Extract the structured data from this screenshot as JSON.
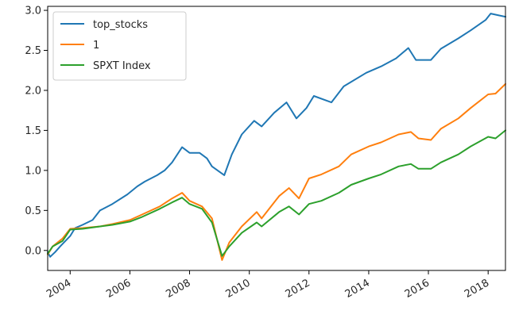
{
  "chart_data": {
    "type": "line",
    "x_axis": {
      "kind": "date",
      "range": [
        "2003-04-01",
        "2018-08-01"
      ],
      "tick_labels": [
        "2004",
        "2006",
        "2008",
        "2010",
        "2012",
        "2014",
        "2016",
        "2018"
      ],
      "tick_dates": [
        "2004-01-01",
        "2006-01-01",
        "2008-01-01",
        "2010-01-01",
        "2012-01-01",
        "2014-01-01",
        "2016-01-01",
        "2018-01-01"
      ],
      "tick_label_rotation": "diagonal"
    },
    "y_axis": {
      "range": [
        -0.25,
        3.05
      ],
      "ticks": [
        0.0,
        0.5,
        1.0,
        1.5,
        2.0,
        2.5,
        3.0
      ],
      "tick_labels": [
        "0.0",
        "0.5",
        "1.0",
        "1.5",
        "2.0",
        "2.5",
        "3.0"
      ]
    },
    "grid": false,
    "legend": {
      "placement": "top-left"
    },
    "series": [
      {
        "name": "top_stocks",
        "color": "#1f77b4",
        "points": [
          [
            "2003-04-01",
            -0.02
          ],
          [
            "2003-05-01",
            -0.08
          ],
          [
            "2003-07-01",
            -0.02
          ],
          [
            "2003-09-01",
            0.05
          ],
          [
            "2004-01-01",
            0.18
          ],
          [
            "2004-03-01",
            0.28
          ],
          [
            "2004-06-01",
            0.32
          ],
          [
            "2004-10-01",
            0.38
          ],
          [
            "2005-01-01",
            0.5
          ],
          [
            "2005-06-01",
            0.58
          ],
          [
            "2005-12-01",
            0.7
          ],
          [
            "2006-04-01",
            0.8
          ],
          [
            "2006-07-01",
            0.86
          ],
          [
            "2006-12-01",
            0.94
          ],
          [
            "2007-03-01",
            1.0
          ],
          [
            "2007-06-01",
            1.1
          ],
          [
            "2007-10-01",
            1.29
          ],
          [
            "2008-01-01",
            1.22
          ],
          [
            "2008-05-01",
            1.22
          ],
          [
            "2008-08-01",
            1.15
          ],
          [
            "2008-10-01",
            1.05
          ],
          [
            "2009-03-01",
            0.94
          ],
          [
            "2009-06-01",
            1.2
          ],
          [
            "2009-10-01",
            1.45
          ],
          [
            "2010-03-01",
            1.62
          ],
          [
            "2010-06-01",
            1.55
          ],
          [
            "2010-11-01",
            1.72
          ],
          [
            "2011-04-01",
            1.85
          ],
          [
            "2011-08-01",
            1.65
          ],
          [
            "2011-12-01",
            1.78
          ],
          [
            "2012-03-01",
            1.93
          ],
          [
            "2012-10-01",
            1.85
          ],
          [
            "2013-03-01",
            2.05
          ],
          [
            "2013-12-01",
            2.22
          ],
          [
            "2014-06-01",
            2.3
          ],
          [
            "2014-12-01",
            2.4
          ],
          [
            "2015-05-01",
            2.53
          ],
          [
            "2015-08-01",
            2.38
          ],
          [
            "2016-02-01",
            2.38
          ],
          [
            "2016-06-01",
            2.52
          ],
          [
            "2017-01-01",
            2.65
          ],
          [
            "2017-06-01",
            2.75
          ],
          [
            "2017-12-01",
            2.88
          ],
          [
            "2018-02-01",
            2.96
          ],
          [
            "2018-05-01",
            2.94
          ],
          [
            "2018-08-01",
            2.92
          ]
        ]
      },
      {
        "name": "1",
        "color": "#ff7f0e",
        "points": [
          [
            "2003-04-01",
            -0.05
          ],
          [
            "2003-06-01",
            0.05
          ],
          [
            "2003-10-01",
            0.15
          ],
          [
            "2004-01-01",
            0.27
          ],
          [
            "2004-06-01",
            0.28
          ],
          [
            "2005-01-01",
            0.3
          ],
          [
            "2005-06-01",
            0.33
          ],
          [
            "2006-01-01",
            0.38
          ],
          [
            "2006-06-01",
            0.45
          ],
          [
            "2007-01-01",
            0.55
          ],
          [
            "2007-06-01",
            0.65
          ],
          [
            "2007-10-01",
            0.72
          ],
          [
            "2008-01-01",
            0.62
          ],
          [
            "2008-06-01",
            0.55
          ],
          [
            "2008-10-01",
            0.4
          ],
          [
            "2009-02-01",
            -0.12
          ],
          [
            "2009-05-01",
            0.1
          ],
          [
            "2009-10-01",
            0.3
          ],
          [
            "2010-04-01",
            0.48
          ],
          [
            "2010-06-01",
            0.4
          ],
          [
            "2011-01-01",
            0.68
          ],
          [
            "2011-05-01",
            0.78
          ],
          [
            "2011-09-01",
            0.65
          ],
          [
            "2012-01-01",
            0.9
          ],
          [
            "2012-06-01",
            0.95
          ],
          [
            "2013-01-01",
            1.05
          ],
          [
            "2013-06-01",
            1.2
          ],
          [
            "2014-01-01",
            1.3
          ],
          [
            "2014-06-01",
            1.35
          ],
          [
            "2015-01-01",
            1.45
          ],
          [
            "2015-06-01",
            1.48
          ],
          [
            "2015-09-01",
            1.4
          ],
          [
            "2016-02-01",
            1.38
          ],
          [
            "2016-06-01",
            1.52
          ],
          [
            "2017-01-01",
            1.65
          ],
          [
            "2017-06-01",
            1.78
          ],
          [
            "2018-01-01",
            1.95
          ],
          [
            "2018-04-01",
            1.96
          ],
          [
            "2018-08-01",
            2.08
          ]
        ]
      },
      {
        "name": "SPXT Index",
        "color": "#2ca02c",
        "points": [
          [
            "2003-04-01",
            -0.04
          ],
          [
            "2003-06-01",
            0.05
          ],
          [
            "2003-10-01",
            0.12
          ],
          [
            "2004-01-01",
            0.26
          ],
          [
            "2004-06-01",
            0.27
          ],
          [
            "2005-01-01",
            0.3
          ],
          [
            "2005-06-01",
            0.32
          ],
          [
            "2006-01-01",
            0.36
          ],
          [
            "2006-06-01",
            0.42
          ],
          [
            "2007-01-01",
            0.52
          ],
          [
            "2007-06-01",
            0.6
          ],
          [
            "2007-10-01",
            0.66
          ],
          [
            "2008-01-01",
            0.58
          ],
          [
            "2008-06-01",
            0.52
          ],
          [
            "2008-10-01",
            0.35
          ],
          [
            "2009-02-01",
            -0.07
          ],
          [
            "2009-05-01",
            0.05
          ],
          [
            "2009-10-01",
            0.22
          ],
          [
            "2010-04-01",
            0.35
          ],
          [
            "2010-06-01",
            0.3
          ],
          [
            "2011-01-01",
            0.48
          ],
          [
            "2011-05-01",
            0.55
          ],
          [
            "2011-09-01",
            0.45
          ],
          [
            "2012-01-01",
            0.58
          ],
          [
            "2012-06-01",
            0.62
          ],
          [
            "2013-01-01",
            0.72
          ],
          [
            "2013-06-01",
            0.82
          ],
          [
            "2014-01-01",
            0.9
          ],
          [
            "2014-06-01",
            0.95
          ],
          [
            "2015-01-01",
            1.05
          ],
          [
            "2015-06-01",
            1.08
          ],
          [
            "2015-09-01",
            1.02
          ],
          [
            "2016-02-01",
            1.02
          ],
          [
            "2016-06-01",
            1.1
          ],
          [
            "2017-01-01",
            1.2
          ],
          [
            "2017-06-01",
            1.3
          ],
          [
            "2018-01-01",
            1.42
          ],
          [
            "2018-04-01",
            1.4
          ],
          [
            "2018-08-01",
            1.5
          ]
        ]
      }
    ]
  }
}
